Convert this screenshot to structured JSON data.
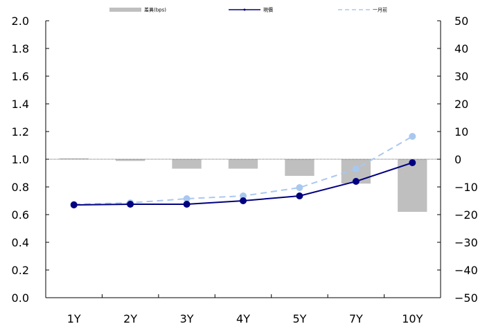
{
  "chart_data": {
    "type": "bar",
    "categories": [
      "1Y",
      "2Y",
      "3Y",
      "4Y",
      "5Y",
      "7Y",
      "10Y"
    ],
    "series": [
      {
        "name": "差異(bps)",
        "type": "bar",
        "axis": "right",
        "color": "#bfbfbf",
        "values": [
          0.3,
          -0.6,
          -3.4,
          -3.4,
          -6.0,
          -8.8,
          -19.0
        ]
      },
      {
        "name": "現價",
        "type": "line",
        "axis": "left",
        "color": "#000080",
        "values": [
          0.67,
          0.675,
          0.675,
          0.7,
          0.735,
          0.84,
          0.975
        ]
      },
      {
        "name": "一月前",
        "type": "line",
        "axis": "left",
        "color": "#a9c8ef",
        "dashed": true,
        "values": [
          0.675,
          0.685,
          0.715,
          0.735,
          0.795,
          0.93,
          1.165
        ]
      }
    ],
    "left_axis": {
      "ylim": [
        0.0,
        2.0
      ],
      "ticks": [
        "0.0",
        "0.2",
        "0.4",
        "0.6",
        "0.8",
        "1.0",
        "1.2",
        "1.4",
        "1.6",
        "1.8",
        "2.0"
      ]
    },
    "right_axis": {
      "ylim": [
        -50,
        50
      ],
      "ticks": [
        "-50",
        "-40",
        "-30",
        "-20",
        "-10",
        "0",
        "10",
        "20",
        "30",
        "40",
        "50"
      ]
    },
    "legend_position": "top",
    "grid": false,
    "zero_line": true
  }
}
